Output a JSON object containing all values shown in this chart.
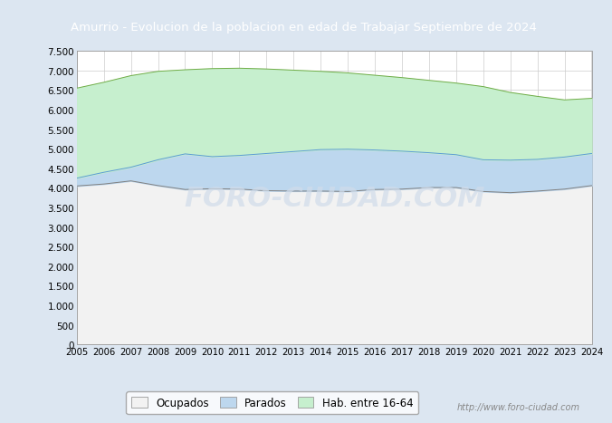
{
  "title": "Amurrio - Evolucion de la poblacion en edad de Trabajar Septiembre de 2024",
  "title_bg": "#4472c4",
  "title_color": "white",
  "ylim": [
    0,
    7500
  ],
  "yticks": [
    0,
    500,
    1000,
    1500,
    2000,
    2500,
    3000,
    3500,
    4000,
    4500,
    5000,
    5500,
    6000,
    6500,
    7000,
    7500
  ],
  "years": [
    2005,
    2006,
    2007,
    2008,
    2009,
    2010,
    2011,
    2012,
    2013,
    2014,
    2015,
    2016,
    2017,
    2018,
    2019,
    2020,
    2021,
    2022,
    2023,
    2024
  ],
  "hab_16_64": [
    6550,
    6700,
    6870,
    6980,
    7020,
    7050,
    7060,
    7040,
    7010,
    6980,
    6940,
    6880,
    6820,
    6750,
    6680,
    6590,
    6440,
    6340,
    6250,
    6290
  ],
  "parados": [
    4250,
    4400,
    4530,
    4720,
    4870,
    4800,
    4830,
    4880,
    4930,
    4980,
    4990,
    4970,
    4940,
    4900,
    4850,
    4720,
    4710,
    4730,
    4790,
    4880
  ],
  "ocupados": [
    4050,
    4100,
    4180,
    4060,
    3960,
    3980,
    3970,
    3930,
    3920,
    3920,
    3910,
    3960,
    3970,
    4010,
    4010,
    3910,
    3880,
    3920,
    3970,
    4060
  ],
  "color_hab": "#c6efce",
  "color_hab_line": "#70ad47",
  "color_parados": "#bdd7ee",
  "color_parados_line": "#5b9bd5",
  "color_ocupados": "#f2f2f2",
  "color_ocupados_line": "#808080",
  "watermark": "http://www.foro-ciudad.com",
  "legend_labels": [
    "Ocupados",
    "Parados",
    "Hab. entre 16-64"
  ],
  "background_color": "#dce6f1"
}
